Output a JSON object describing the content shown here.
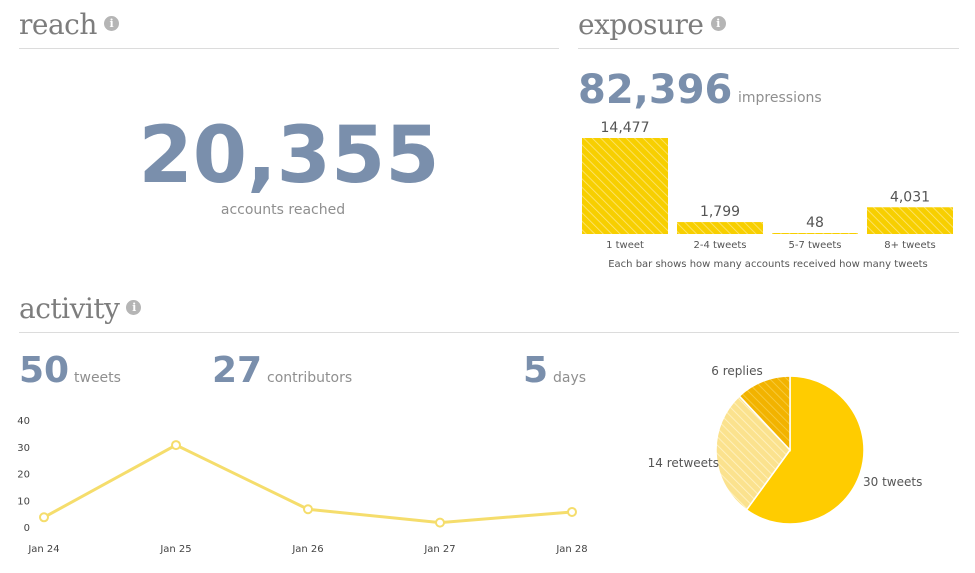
{
  "reach": {
    "title": "reach",
    "info_icon": "i",
    "value": "20,355",
    "label": "accounts reached"
  },
  "exposure": {
    "title": "exposure",
    "info_icon": "i",
    "value": "82,396",
    "label": "impressions",
    "caption": "Each bar shows how many accounts received how many tweets"
  },
  "activity": {
    "title": "activity",
    "info_icon": "i",
    "tweets_value": "50",
    "tweets_label": "tweets",
    "contributors_value": "27",
    "contributors_label": "contributors",
    "days_value": "5",
    "days_label": "days"
  },
  "colors": {
    "accent_number": "#7a8fac",
    "bar_yellow": "#f7cf00",
    "line_yellow": "#f5dd6c",
    "pie_tweets": "#ffcc00",
    "pie_retweets": "#fbe28e",
    "pie_replies": "#f2b300"
  },
  "chart_data": [
    {
      "type": "bar",
      "categories": [
        "1 tweet",
        "2-4 tweets",
        "5-7 tweets",
        "8+ tweets"
      ],
      "values": [
        14477,
        1799,
        48,
        4031
      ],
      "value_labels": [
        "14,477",
        "1,799",
        "48",
        "4,031"
      ],
      "title": "",
      "xlabel": "",
      "ylabel": "",
      "ylim": [
        0,
        14477
      ]
    },
    {
      "type": "line",
      "x": [
        "Jan 24",
        "Jan 25",
        "Jan 26",
        "Jan 27",
        "Jan 28"
      ],
      "series": [
        {
          "values": [
            4,
            31,
            7,
            2,
            6
          ]
        }
      ],
      "yticks": [
        "0",
        "10",
        "20",
        "30",
        "40"
      ],
      "ylim": [
        0,
        40
      ],
      "grid": false
    },
    {
      "type": "pie",
      "slices": [
        {
          "label": "30 tweets",
          "value": 30
        },
        {
          "label": "14 retweets",
          "value": 14
        },
        {
          "label": "6 replies",
          "value": 6
        }
      ]
    }
  ]
}
